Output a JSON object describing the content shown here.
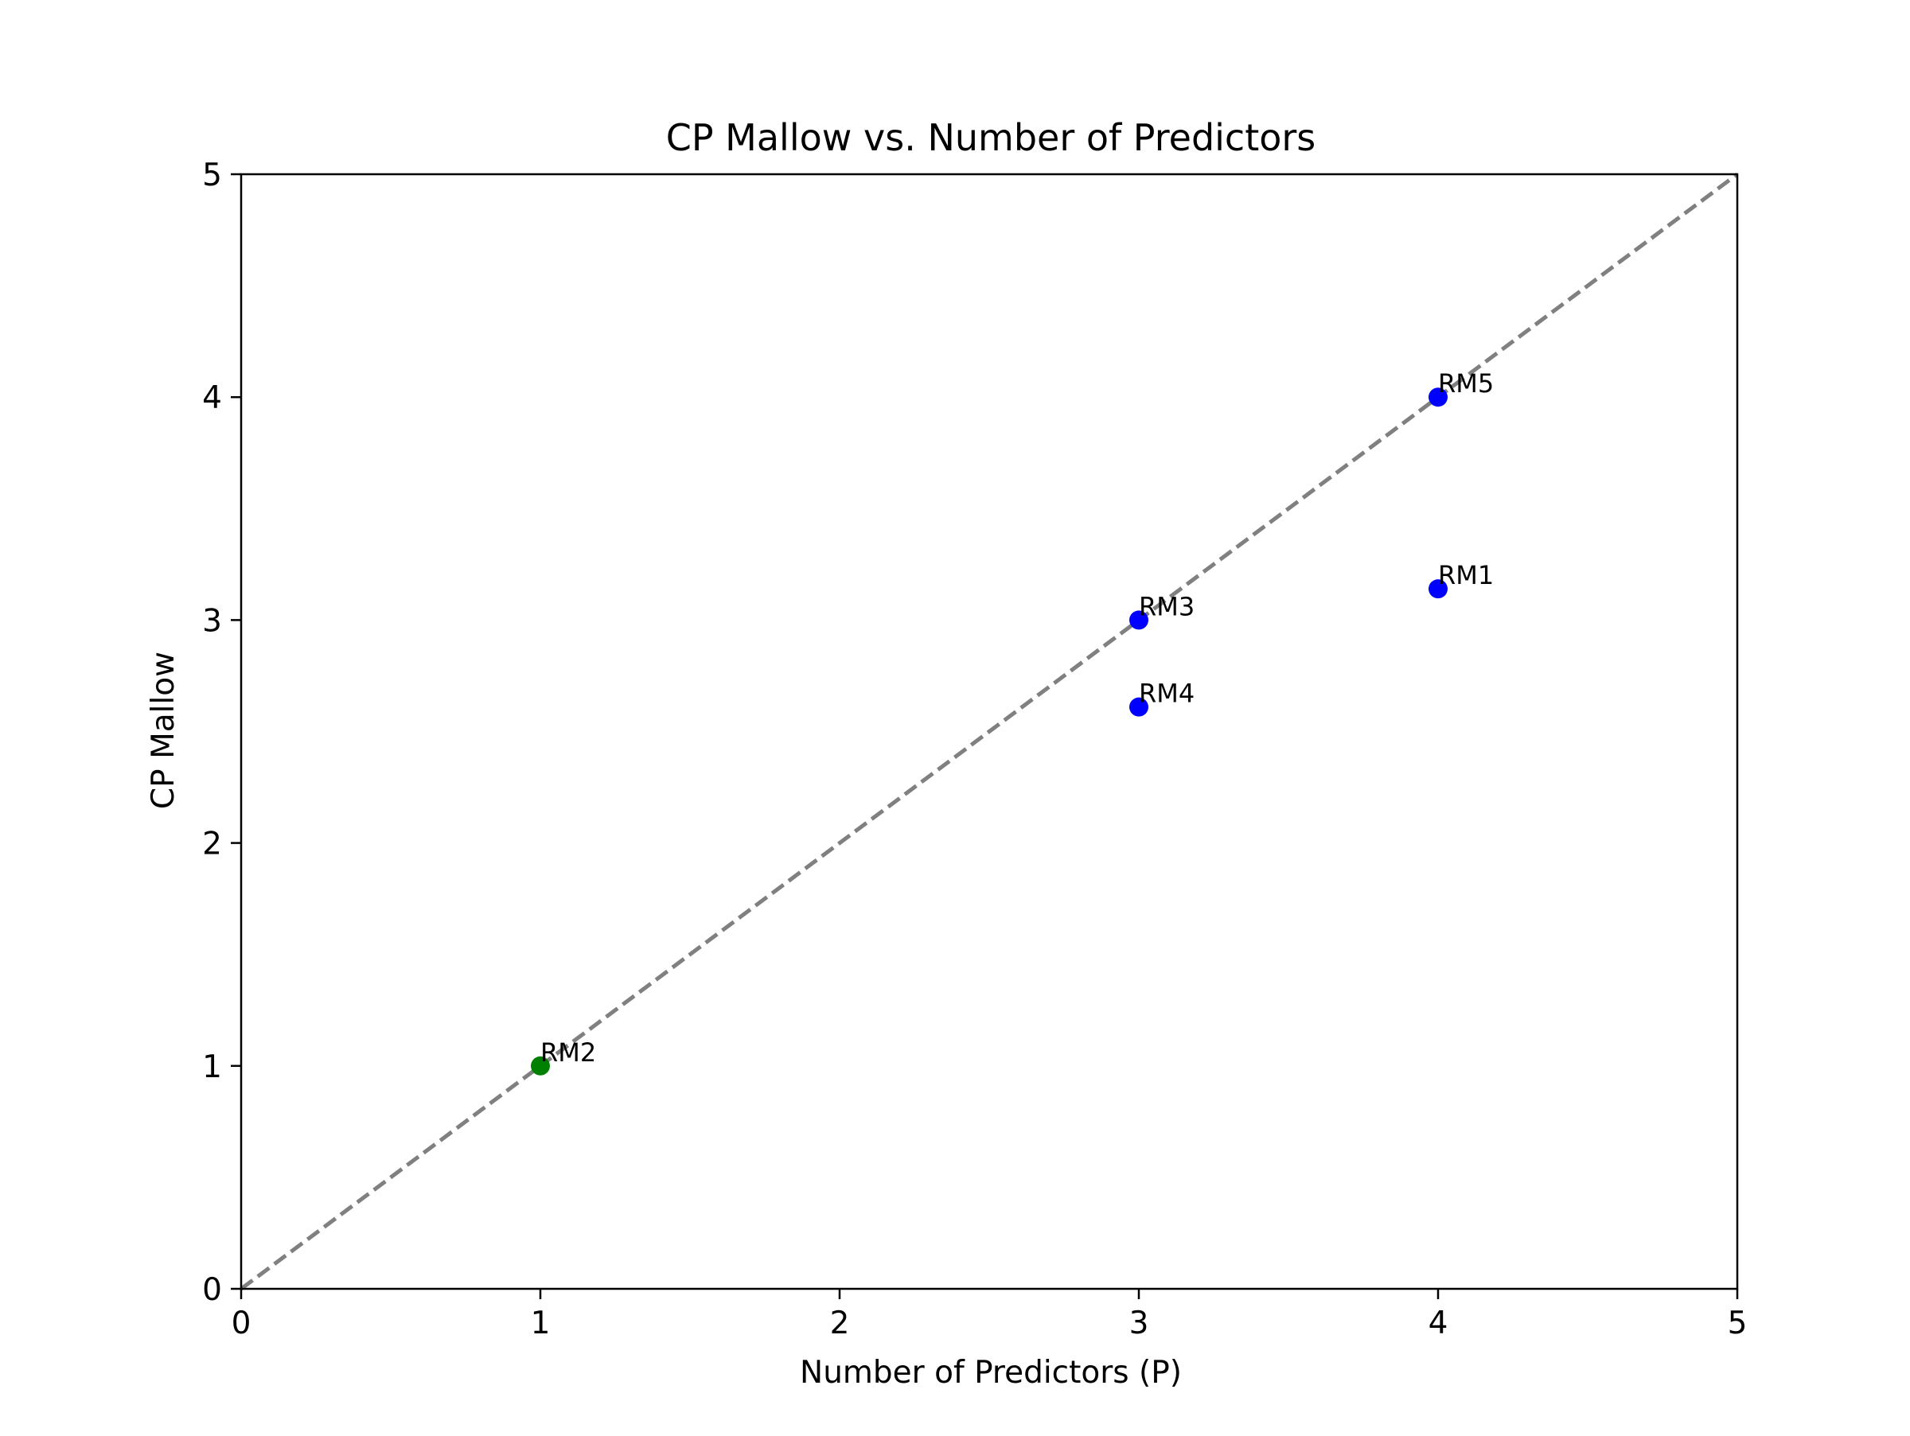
{
  "chart_data": {
    "type": "scatter",
    "title": "CP Mallow vs. Number of Predictors",
    "xlabel": "Number of Predictors (P)",
    "ylabel": "CP Mallow",
    "xlim": [
      0,
      5
    ],
    "ylim": [
      0,
      5
    ],
    "xticks": [
      "0",
      "1",
      "2",
      "3",
      "4",
      "5"
    ],
    "yticks": [
      "0",
      "1",
      "2",
      "3",
      "4",
      "5"
    ],
    "grid": false,
    "reference_line": {
      "from": [
        0,
        0
      ],
      "to": [
        5,
        5
      ],
      "style": "dashed",
      "color": "#808080"
    },
    "points": [
      {
        "label": "RM1",
        "x": 4,
        "y": 3.14,
        "color": "#0000ff"
      },
      {
        "label": "RM2",
        "x": 1,
        "y": 1.0,
        "color": "#008000"
      },
      {
        "label": "RM3",
        "x": 3,
        "y": 3.0,
        "color": "#0000ff"
      },
      {
        "label": "RM4",
        "x": 3,
        "y": 2.61,
        "color": "#0000ff"
      },
      {
        "label": "RM5",
        "x": 4,
        "y": 4.0,
        "color": "#0000ff"
      }
    ]
  }
}
